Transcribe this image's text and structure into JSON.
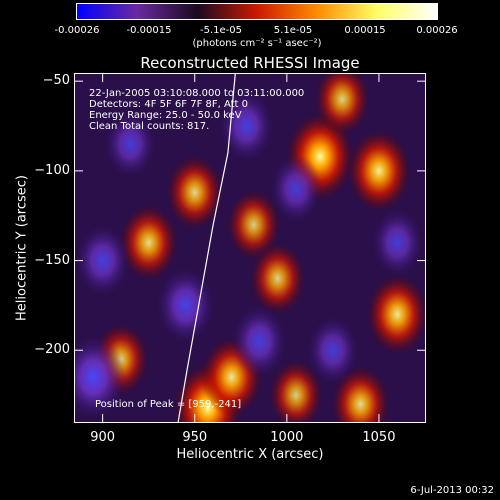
{
  "colorbar": {
    "ticks": [
      "-0.00026",
      "-0.00015",
      "-5.1e-05",
      "5.1e-05",
      "0.00015",
      "0.00026"
    ],
    "units": "(photons cm⁻² s⁻¹ asec⁻²)",
    "colors": [
      "#0000ff",
      "#6a2aa0",
      "#1a0a20",
      "#cc1a00",
      "#ff8c00",
      "#ffff66",
      "#ffffff"
    ]
  },
  "chart_data": {
    "type": "heatmap",
    "title": "Reconstructed RHESSI Image",
    "xlabel": "Heliocentric X (arcsec)",
    "ylabel": "Heliocentric Y (arcsec)",
    "xlim": [
      885,
      1075
    ],
    "ylim": [
      -240,
      -46
    ],
    "x_ticks": [
      "900",
      "950",
      "1000",
      "1050"
    ],
    "x_tick_values": [
      900,
      950,
      1000,
      1050
    ],
    "y_ticks": [
      "−50",
      "−100",
      "−150",
      "−200"
    ],
    "y_tick_values": [
      -50,
      -100,
      -150,
      -200
    ],
    "annotations": [
      "22-Jan-2005 03:10:08.000 to 03:11:00.000",
      "Detectors: 4F 5F 6F 7F 8F, Att 0",
      "Energy Range: 25.0 - 50.0 keV",
      "Clean    Total counts: 817."
    ],
    "peak_text": "Position of Peak = [959,-241]",
    "limb_points": [
      [
        972,
        -46
      ],
      [
        968,
        -90
      ],
      [
        960,
        -130
      ],
      [
        953,
        -170
      ],
      [
        946,
        -210
      ],
      [
        941,
        -240
      ]
    ],
    "sources": [
      {
        "x": 1018,
        "y": -92,
        "level": 1.0
      },
      {
        "x": 1050,
        "y": -100,
        "level": 0.85
      },
      {
        "x": 1060,
        "y": -180,
        "level": 0.8
      },
      {
        "x": 957,
        "y": -232,
        "level": 1.0
      },
      {
        "x": 970,
        "y": -215,
        "level": 0.8
      },
      {
        "x": 925,
        "y": -140,
        "level": 0.7
      },
      {
        "x": 950,
        "y": -112,
        "level": 0.65
      },
      {
        "x": 995,
        "y": -160,
        "level": 0.6
      },
      {
        "x": 910,
        "y": -205,
        "level": 0.6
      },
      {
        "x": 1040,
        "y": -230,
        "level": 0.7
      },
      {
        "x": 1005,
        "y": -225,
        "level": 0.55
      },
      {
        "x": 1030,
        "y": -60,
        "level": 0.6
      },
      {
        "x": 982,
        "y": -130,
        "level": 0.55
      },
      {
        "x": 900,
        "y": -150,
        "level": -0.6
      },
      {
        "x": 945,
        "y": -175,
        "level": -0.7
      },
      {
        "x": 895,
        "y": -215,
        "level": -0.9
      },
      {
        "x": 978,
        "y": -75,
        "level": -0.6
      },
      {
        "x": 915,
        "y": -85,
        "level": -0.5
      },
      {
        "x": 1005,
        "y": -110,
        "level": -0.5
      },
      {
        "x": 1060,
        "y": -140,
        "level": -0.5
      },
      {
        "x": 1025,
        "y": -200,
        "level": -0.5
      },
      {
        "x": 985,
        "y": -195,
        "level": -0.6
      }
    ]
  },
  "footer": "6-Jul-2013 00:32"
}
